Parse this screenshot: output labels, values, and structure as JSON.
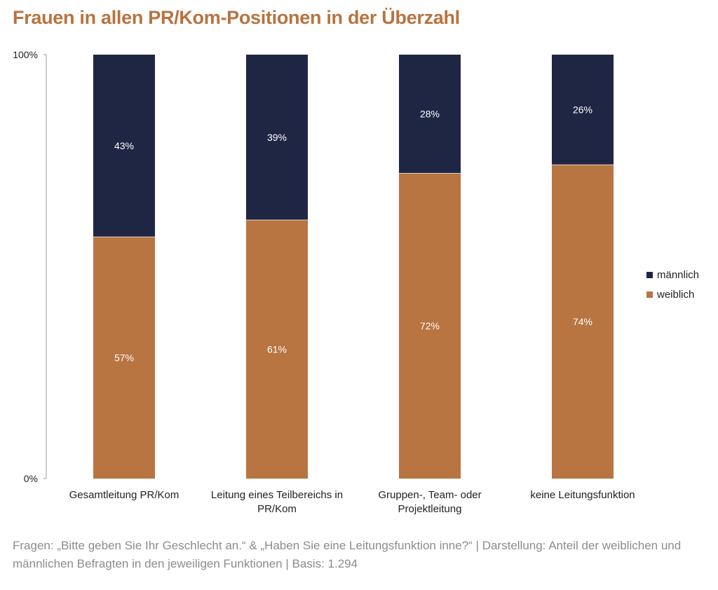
{
  "title": "Frauen in allen PR/Kom-Positionen in der Überzahl",
  "colors": {
    "maennlich": "#1f2644",
    "weiblich": "#b87441",
    "axis": "#999999"
  },
  "chart_data": {
    "type": "bar",
    "stacked": true,
    "categories": [
      [
        "Gesamtleitung PR/Kom"
      ],
      [
        "Leitung eines Teilbereichs in",
        "PR/Kom"
      ],
      [
        "Gruppen-, Team- oder",
        "Projektleitung"
      ],
      [
        "keine Leitungsfunktion"
      ]
    ],
    "series": [
      {
        "name": "weiblich",
        "values": [
          57,
          61,
          72,
          74
        ],
        "labels": [
          "57%",
          "61%",
          "72%",
          "74%"
        ]
      },
      {
        "name": "männlich",
        "values": [
          43,
          39,
          28,
          26
        ],
        "labels": [
          "43%",
          "39%",
          "28%",
          "26%"
        ]
      }
    ],
    "ylim": [
      0,
      100
    ],
    "yticks": [
      "0%",
      "100%"
    ],
    "legend_position": "right"
  },
  "legend": {
    "items": [
      "männlich",
      "weiblich"
    ]
  },
  "footnote": "Fragen: „Bitte geben Sie Ihr Geschlecht an.“ & „Haben Sie eine Leitungsfunktion inne?“ | Darstellung: Anteil der weiblichen und männlichen Befragten in den jeweiligen Funktionen | Basis: 1.294"
}
